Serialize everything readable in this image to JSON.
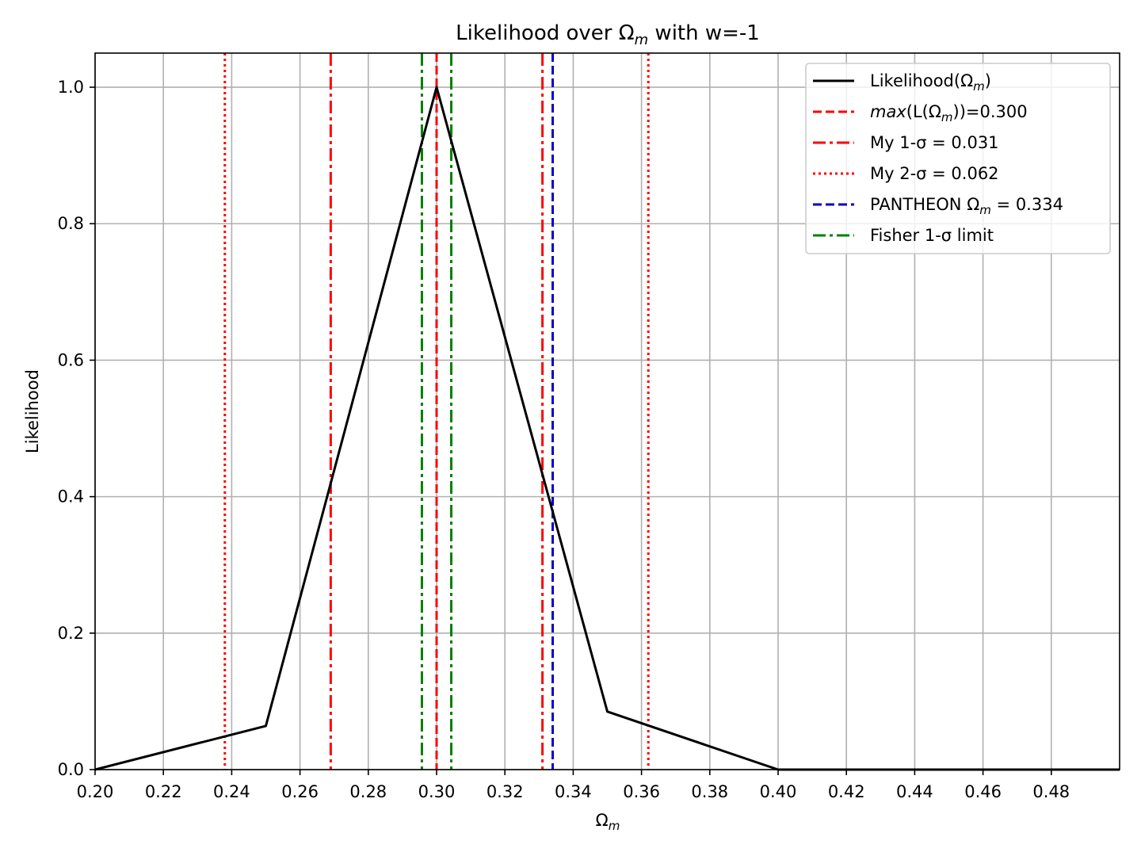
{
  "chart_data": {
    "type": "line",
    "title": {
      "base": "Likelihood over Ω",
      "sub": "m",
      "rest": " with w=-1"
    },
    "xlabel": {
      "base": "Ω",
      "sub": "m"
    },
    "ylabel": "Likelihood",
    "xlim": [
      0.2,
      0.5
    ],
    "ylim": [
      0.0,
      1.05
    ],
    "xticks": [
      0.2,
      0.22,
      0.24,
      0.26,
      0.28,
      0.3,
      0.32,
      0.34,
      0.36,
      0.38,
      0.4,
      0.42,
      0.44,
      0.46,
      0.48
    ],
    "xtick_labels": [
      "0.20",
      "0.22",
      "0.24",
      "0.26",
      "0.28",
      "0.30",
      "0.32",
      "0.34",
      "0.36",
      "0.38",
      "0.40",
      "0.42",
      "0.44",
      "0.46",
      "0.48"
    ],
    "yticks": [
      0.0,
      0.2,
      0.4,
      0.6,
      0.8,
      1.0
    ],
    "ytick_labels": [
      "0.0",
      "0.2",
      "0.4",
      "0.6",
      "0.8",
      "1.0"
    ],
    "grid": true,
    "legend_position": "top-right",
    "series": [
      {
        "name": "Likelihood(Ωm)",
        "legend": {
          "pre": "Likelihood(Ω",
          "sub": "m",
          "post": ")"
        },
        "color": "#000000",
        "style": "solid",
        "x": [
          0.2,
          0.25,
          0.3,
          0.35,
          0.4,
          0.45,
          0.5
        ],
        "y": [
          0.0,
          0.064,
          1.0,
          0.085,
          0.0,
          0.0,
          0.0
        ]
      }
    ],
    "vlines": [
      {
        "name": "max(L(Ωm))=0.300",
        "legend": {
          "pre": "max(L(Ω",
          "sub": "m",
          "post": "))=0.300",
          "italic_pre": "max"
        },
        "color": "#ff0000",
        "style": "dashed",
        "x": [
          0.3
        ]
      },
      {
        "name": "My 1-σ = 0.031",
        "legend": {
          "pre": "My 1-σ = 0.031"
        },
        "color": "#ff0000",
        "style": "dashdot",
        "x": [
          0.269,
          0.331
        ]
      },
      {
        "name": "My 2-σ = 0.062",
        "legend": {
          "pre": "My 2-σ = 0.062"
        },
        "color": "#ff0000",
        "style": "dotted",
        "x": [
          0.238,
          0.362
        ]
      },
      {
        "name": "PANTHEON Ωm = 0.334",
        "legend": {
          "pre": "PANTHEON Ω",
          "sub": "m",
          "post": " = 0.334"
        },
        "color": "#0000cc",
        "style": "dashed",
        "x": [
          0.334
        ]
      },
      {
        "name": "Fisher 1-σ limit",
        "legend": {
          "pre": "Fisher 1-σ limit"
        },
        "color": "#008000",
        "style": "dashdot",
        "x": [
          0.2957,
          0.3043
        ]
      }
    ]
  }
}
